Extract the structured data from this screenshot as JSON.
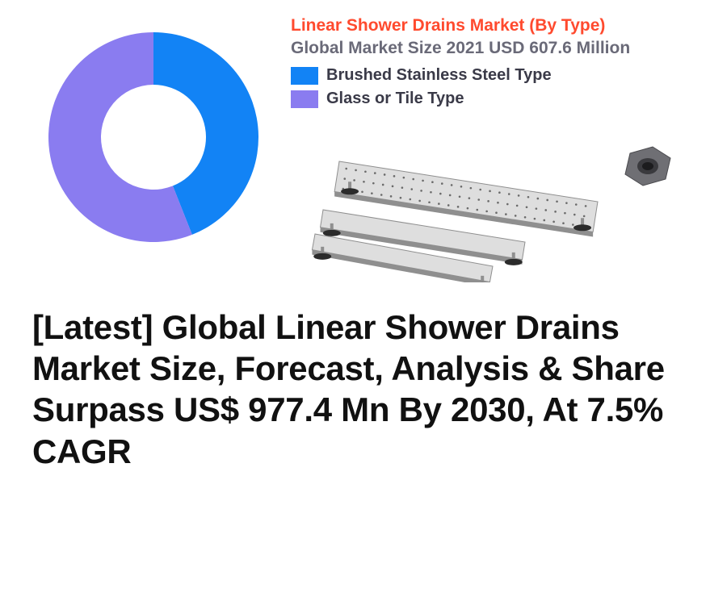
{
  "chart": {
    "type": "donut",
    "title": "Linear Shower Drains Market (By Type)",
    "title_color": "#ff4a2e",
    "title_fontsize": 21,
    "subtitle": "Global Market Size 2021 USD 607.6 Million",
    "subtitle_color": "#6a6a78",
    "subtitle_fontsize": 21,
    "segments": [
      {
        "label": "Brushed Stainless Steel Type",
        "color": "#1283f5",
        "value": 44
      },
      {
        "label": "Glass or Tile Type",
        "color": "#8a7cf0",
        "value": 56
      }
    ],
    "inner_radius": 65,
    "outer_radius": 130,
    "background_color": "#ffffff",
    "legend_label_color": "#3a3a48",
    "legend_fontsize": 20
  },
  "product_illustration": {
    "drain_body_color": "#dedede",
    "drain_edge_color": "#8f8f8f",
    "grate_dot_color": "#6a6a6a",
    "foot_color": "#2b2b2b",
    "fitting_color": "#6f6f74"
  },
  "headline": {
    "text": "[Latest] Global Linear Shower Drains Market Size, Forecast, Analysis & Share Surpass US$ 977.4 Mn By 2030, At 7.5% CAGR",
    "color": "#111111",
    "fontsize": 42
  }
}
